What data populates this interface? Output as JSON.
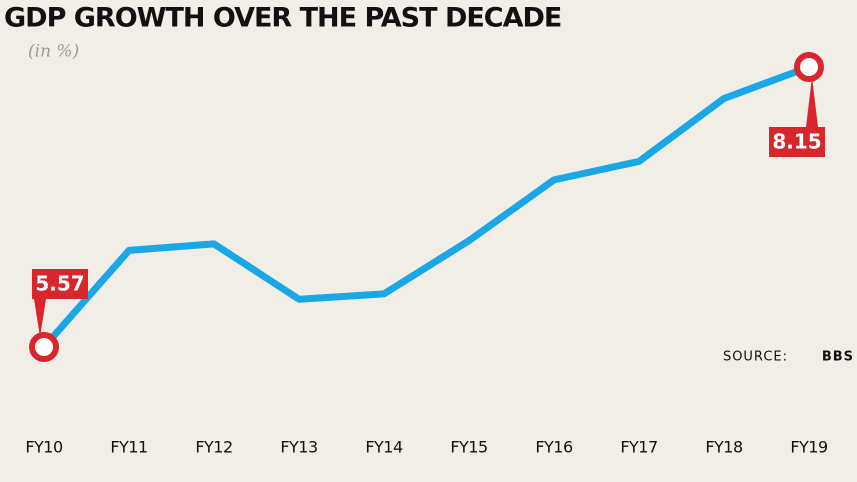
{
  "chart_data": {
    "type": "line",
    "title": "GDP GROWTH OVER THE PAST DECADE",
    "subtitle": "(in %)",
    "categories": [
      "FY10",
      "FY11",
      "FY12",
      "FY13",
      "FY14",
      "FY15",
      "FY16",
      "FY17",
      "FY18",
      "FY19"
    ],
    "series": [
      {
        "name": "GDP growth",
        "color": "#1aa7e6",
        "values": [
          5.57,
          6.46,
          6.52,
          6.01,
          6.06,
          6.55,
          7.11,
          7.28,
          7.86,
          8.15
        ],
        "value_labels": [
          "5.57",
          null,
          null,
          null,
          null,
          null,
          null,
          null,
          null,
          "8.15"
        ]
      }
    ],
    "marker_color": "#d7262c",
    "source_label": "SOURCE:",
    "source": "BBS"
  }
}
